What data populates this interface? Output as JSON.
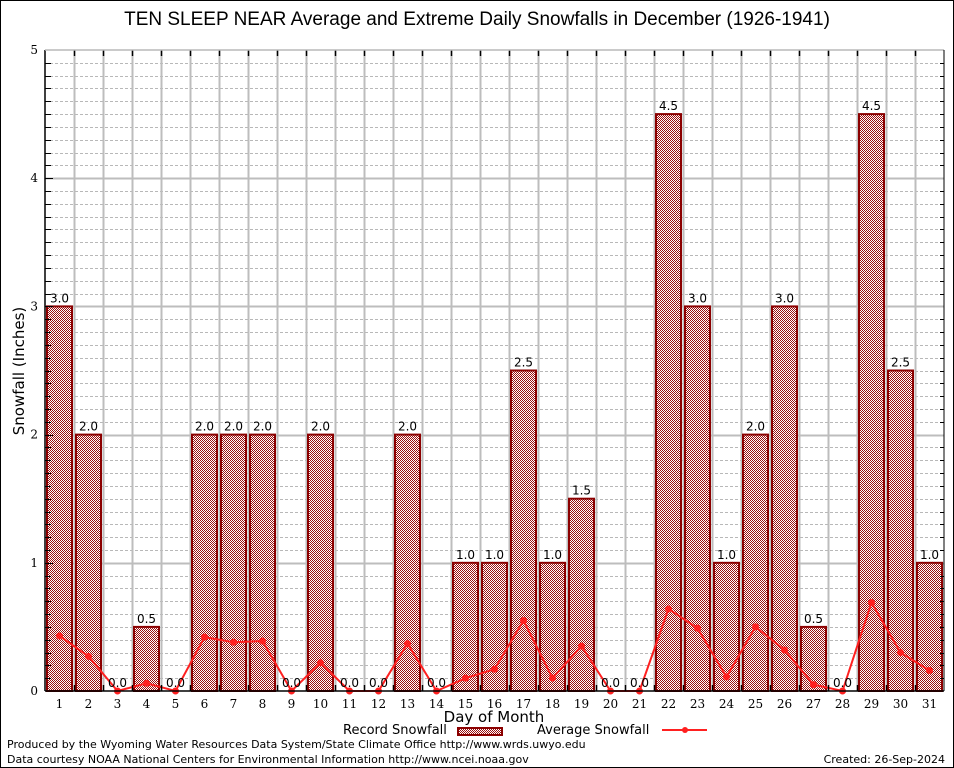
{
  "chart_data": {
    "type": "bar",
    "title": "TEN SLEEP NEAR Average and Extreme Daily Snowfalls in December (1926-1941)",
    "xlabel": "Day of Month",
    "ylabel": "Snowfall (Inches)",
    "ylim": [
      0,
      5
    ],
    "yticks": [
      "0",
      "1",
      "2",
      "3",
      "4",
      "5"
    ],
    "grid": true,
    "legend_position": "bottom-center",
    "categories": [
      "1",
      "2",
      "3",
      "4",
      "5",
      "6",
      "7",
      "8",
      "9",
      "10",
      "11",
      "12",
      "13",
      "14",
      "15",
      "16",
      "17",
      "18",
      "19",
      "20",
      "21",
      "22",
      "23",
      "24",
      "25",
      "26",
      "27",
      "28",
      "29",
      "30",
      "31"
    ],
    "series": [
      {
        "name": "Record Snowfall",
        "type": "bar",
        "color": "#8b0000",
        "values": [
          3.0,
          2.0,
          0.0,
          0.5,
          0.0,
          2.0,
          2.0,
          2.0,
          0.0,
          2.0,
          0.0,
          0.0,
          2.0,
          0.0,
          1.0,
          1.0,
          2.5,
          1.0,
          1.5,
          0.0,
          0.0,
          4.5,
          3.0,
          1.0,
          2.0,
          3.0,
          0.5,
          0.0,
          4.5,
          2.5,
          1.0
        ],
        "labels": [
          "3.0",
          "2.0",
          "0.0",
          "0.5",
          "0.0",
          "2.0",
          "2.0",
          "2.0",
          "0.0",
          "2.0",
          "0.0",
          "0.0",
          "2.0",
          "0.0",
          "1.0",
          "1.0",
          "2.5",
          "1.0",
          "1.5",
          "0.0",
          "0.0",
          "4.5",
          "3.0",
          "1.0",
          "2.0",
          "3.0",
          "0.5",
          "0.0",
          "4.5",
          "2.5",
          "1.0"
        ]
      },
      {
        "name": "Average Snowfall",
        "type": "line",
        "color": "#ff2020",
        "values": [
          0.43,
          0.27,
          0.0,
          0.06,
          0.0,
          0.42,
          0.38,
          0.39,
          0.0,
          0.22,
          0.0,
          0.0,
          0.37,
          0.0,
          0.1,
          0.17,
          0.55,
          0.1,
          0.35,
          0.0,
          0.0,
          0.64,
          0.49,
          0.11,
          0.5,
          0.32,
          0.05,
          0.0,
          0.69,
          0.3,
          0.16
        ]
      }
    ]
  },
  "footer": {
    "produced_by": "Produced by the Wyoming Water Resources Data System/State Climate Office http://www.wrds.uwyo.edu",
    "data_courtesy": "Data courtesy NOAA National Centers for Environmental Information http://www.ncei.noaa.gov",
    "created": "Created: 26-Sep-2024"
  }
}
